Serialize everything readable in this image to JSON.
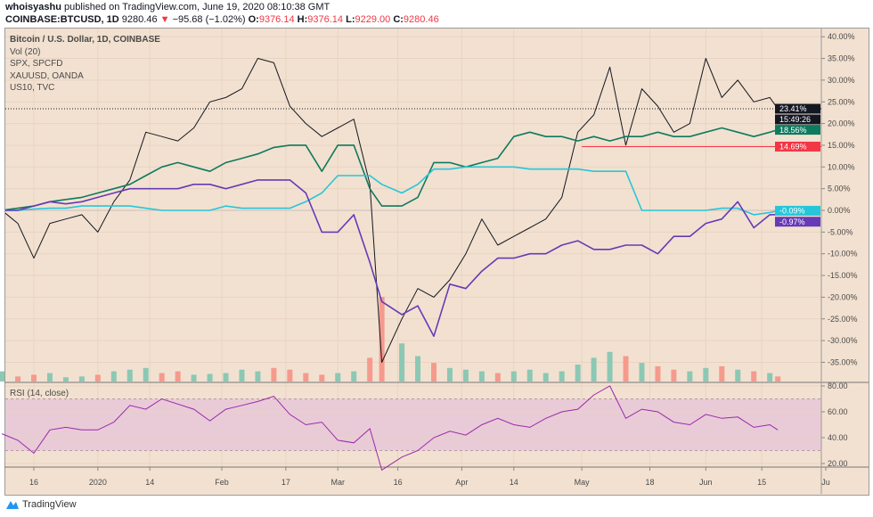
{
  "header": {
    "author": "whoisyashu",
    "published": "published on TradingView.com, June 19, 2020 08:10:38 GMT",
    "symbol": "COINBASE:BTCUSD, 1D",
    "last": "9280.46",
    "change": "−95.68 (−1.02%)",
    "o_label": "O:",
    "o": "9376.14",
    "h_label": "H:",
    "h": "9376.14",
    "l_label": "L:",
    "l": "9229.00",
    "c_label": "C:",
    "c": "9280.46"
  },
  "legend": [
    "Bitcoin / U.S. Dollar, 1D, COINBASE",
    "Vol (20)",
    "SPX, SPCFD",
    "XAUUSD, OANDA",
    "US10, TVC"
  ],
  "colors": {
    "background": "#f2e1d0",
    "up_volume": "#8cc8b4",
    "down_volume": "#f59a8c",
    "rsi_line": "#9c27b0",
    "rsi_band": "#e8cbd6",
    "price_line": "#f23645"
  },
  "chart_data": {
    "type": "line",
    "x": [
      "2019-12-08",
      "2019-12-12",
      "2019-12-16",
      "2019-12-20",
      "2019-12-24",
      "2019-12-28",
      "2020-01-01",
      "2020-01-05",
      "2020-01-09",
      "2020-01-13",
      "2020-01-17",
      "2020-01-21",
      "2020-01-25",
      "2020-01-29",
      "2020-02-02",
      "2020-02-06",
      "2020-02-10",
      "2020-02-14",
      "2020-02-18",
      "2020-02-22",
      "2020-02-26",
      "2020-03-01",
      "2020-03-05",
      "2020-03-09",
      "2020-03-12",
      "2020-03-17",
      "2020-03-21",
      "2020-03-25",
      "2020-03-29",
      "2020-04-02",
      "2020-04-06",
      "2020-04-10",
      "2020-04-14",
      "2020-04-18",
      "2020-04-22",
      "2020-04-26",
      "2020-04-30",
      "2020-05-04",
      "2020-05-08",
      "2020-05-12",
      "2020-05-16",
      "2020-05-20",
      "2020-05-24",
      "2020-05-28",
      "2020-06-01",
      "2020-06-05",
      "2020-06-09",
      "2020-06-13",
      "2020-06-17",
      "2020-06-19"
    ],
    "y_unit": "%",
    "ylim": [
      -38,
      42
    ],
    "yticks": [
      "40.00%",
      "35.00%",
      "30.00%",
      "25.00%",
      "20.00%",
      "15.00%",
      "10.00%",
      "5.00%",
      "0.00%",
      "-5.00%",
      "-10.00%",
      "-15.00%",
      "-20.00%",
      "-25.00%",
      "-30.00%",
      "-35.00%"
    ],
    "ytick_values": [
      40,
      35,
      30,
      25,
      20,
      15,
      10,
      5,
      0,
      -5,
      -10,
      -15,
      -20,
      -25,
      -30,
      -35
    ],
    "xticks": [
      {
        "label": "16",
        "date": "2019-12-16"
      },
      {
        "label": "2020",
        "date": "2020-01-01"
      },
      {
        "label": "14",
        "date": "2020-01-14"
      },
      {
        "label": "Feb",
        "date": "2020-02-01"
      },
      {
        "label": "17",
        "date": "2020-02-17"
      },
      {
        "label": "Mar",
        "date": "2020-03-01"
      },
      {
        "label": "16",
        "date": "2020-03-16"
      },
      {
        "label": "Apr",
        "date": "2020-04-01"
      },
      {
        "label": "14",
        "date": "2020-04-14"
      },
      {
        "label": "May",
        "date": "2020-05-01"
      },
      {
        "label": "18",
        "date": "2020-05-18"
      },
      {
        "label": "Jun",
        "date": "2020-06-01"
      },
      {
        "label": "15",
        "date": "2020-06-15"
      },
      {
        "label": "Ju",
        "date": "2020-07-01"
      }
    ],
    "grid": true,
    "series": [
      {
        "name": "Bitcoin / U.S. Dollar, 1D, COINBASE",
        "color": "#131722",
        "last_label": "23.41%",
        "values": [
          0,
          -3,
          -11,
          -3,
          -2,
          -1,
          -5,
          2,
          7,
          18,
          17,
          16,
          19,
          25,
          26,
          28,
          35,
          34,
          24,
          20,
          17,
          19,
          21,
          6,
          -35,
          -25,
          -18,
          -20,
          -16,
          -10,
          -2,
          -8,
          -6,
          -4,
          -2,
          3,
          18,
          22,
          33,
          15,
          28,
          24,
          18,
          20,
          35,
          26,
          30,
          25,
          26,
          23.41
        ]
      },
      {
        "name": "SPX, SPCFD",
        "color": "#0e7a5f",
        "last_label": "18.56%",
        "values": [
          0,
          0.5,
          1,
          2,
          2.5,
          3,
          4,
          5,
          6,
          8,
          10,
          11,
          10,
          9,
          11,
          12,
          13,
          14.5,
          15,
          15,
          9,
          15,
          15,
          5,
          1,
          1,
          3,
          11,
          11,
          10,
          11,
          12,
          17,
          18,
          17,
          17,
          16,
          17,
          16,
          17,
          17,
          18,
          17,
          17,
          18,
          19,
          18,
          17,
          18,
          18.56
        ]
      },
      {
        "name": "XAUUSD, OANDA",
        "color": "#26c6da",
        "last_label": "-0.09%",
        "values": [
          0,
          0,
          0.3,
          0.5,
          0.5,
          1,
          1,
          1,
          1,
          0.5,
          0,
          0,
          0,
          0,
          1,
          0.5,
          0.5,
          0.5,
          0.5,
          2,
          4,
          8,
          8,
          8,
          6,
          4,
          6,
          9.5,
          9.5,
          10,
          10,
          10,
          10,
          9.5,
          9.5,
          9.5,
          9.5,
          9,
          9,
          9,
          0,
          0,
          0,
          0,
          0,
          0.5,
          0.5,
          -1,
          -0.5,
          -0.09
        ]
      },
      {
        "name": "US10, TVC",
        "color": "#673ab7",
        "last_label": "-0.97%",
        "values": [
          0,
          0,
          1,
          2,
          1.5,
          2,
          3,
          4,
          5,
          5,
          5,
          5,
          6,
          6,
          5,
          6,
          7,
          7,
          7,
          4,
          -5,
          -5,
          -1,
          -12,
          -21,
          -24,
          -22,
          -29,
          -17,
          -18,
          -14,
          -11,
          -11,
          -10,
          -10,
          -8,
          -7,
          -9,
          -9,
          -8,
          -8,
          -10,
          -6,
          -6,
          -3,
          -2,
          2,
          -4,
          -1,
          -0.97
        ]
      }
    ],
    "time_label": "15:49:26",
    "price_line": {
      "value": 14.69,
      "label": "14.69%",
      "from_date": "2020-05-01"
    },
    "volume": {
      "name": "Vol (20)",
      "values": [
        12,
        6,
        8,
        10,
        5,
        6,
        8,
        12,
        14,
        16,
        10,
        12,
        8,
        9,
        10,
        14,
        12,
        16,
        14,
        10,
        8,
        10,
        12,
        28,
        100,
        45,
        30,
        22,
        16,
        14,
        12,
        10,
        12,
        14,
        10,
        12,
        20,
        28,
        35,
        30,
        22,
        18,
        14,
        12,
        16,
        18,
        14,
        12,
        10,
        6
      ]
    },
    "rsi": {
      "name": "RSI (14, close)",
      "ylim": [
        12,
        83
      ],
      "band": [
        30,
        70
      ],
      "yticks": [
        "80.00",
        "60.00",
        "40.00",
        "20.00"
      ],
      "ytick_values": [
        80,
        60,
        40,
        20
      ],
      "values": [
        43,
        38,
        28,
        46,
        48,
        46,
        46,
        52,
        65,
        62,
        70,
        66,
        62,
        53,
        62,
        65,
        68,
        72,
        58,
        50,
        52,
        38,
        36,
        47,
        15,
        25,
        30,
        40,
        45,
        42,
        50,
        55,
        50,
        48,
        55,
        60,
        62,
        73,
        80,
        55,
        62,
        60,
        52,
        50,
        58,
        55,
        56,
        48,
        50,
        46
      ]
    }
  },
  "footer": {
    "brand": "TradingView"
  }
}
